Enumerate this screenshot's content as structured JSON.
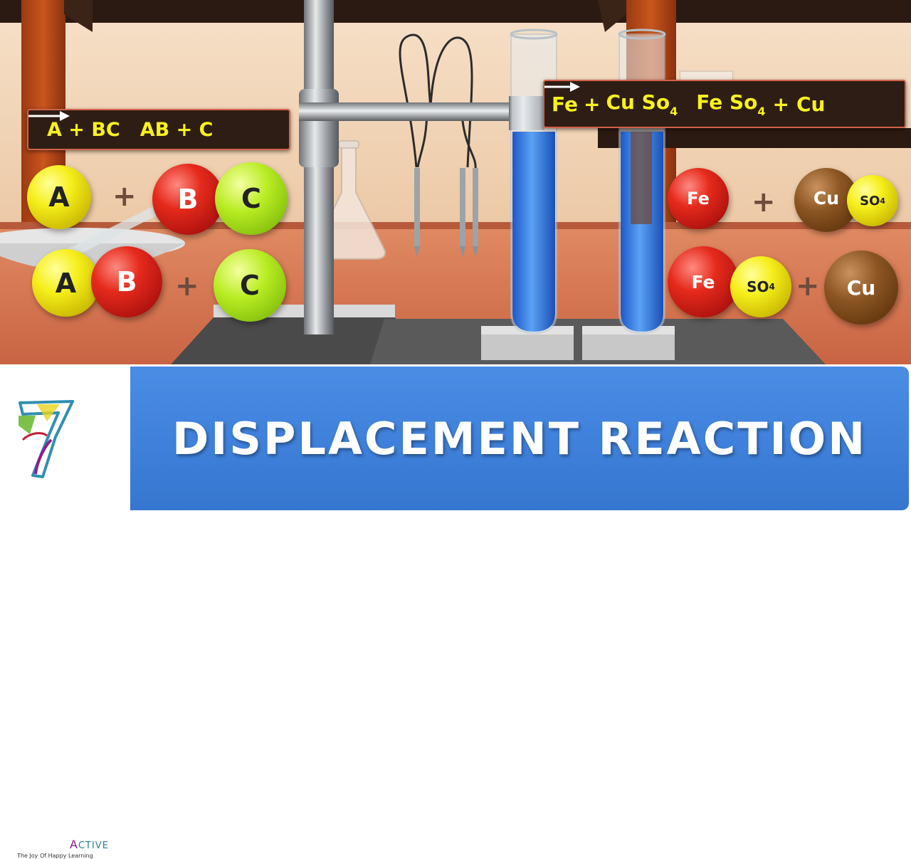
{
  "left_equation": {
    "lhs": "A + BC",
    "rhs": "AB + C"
  },
  "right_equation": {
    "reactant_1": "Fe",
    "reactant_2_main": "Cu So",
    "reactant_2_sub": "4",
    "product_1_main": "Fe So",
    "product_1_sub": "4",
    "product_2": "Cu",
    "plus": "+"
  },
  "molecules_left": {
    "row1": {
      "a": "A",
      "plus": "+",
      "b": "B",
      "c": "C"
    },
    "row2": {
      "a": "A",
      "b": "B",
      "plus": "+",
      "c": "C"
    }
  },
  "molecules_right": {
    "row1": {
      "fe": "Fe",
      "plus": "+",
      "cu": "Cu",
      "so4_main": "SO",
      "so4_sub": "4"
    },
    "row2": {
      "fe": "Fe",
      "so4_main": "SO",
      "so4_sub": "4",
      "plus": "+",
      "cu": "Cu"
    }
  },
  "banner": {
    "title": "DISPLACEMENT REACTION"
  },
  "logo": {
    "brand_cap": "A",
    "brand_rest": "CTIVE",
    "tagline": "The Joy Of Happy Learning"
  },
  "colors": {
    "equation_text": "#f7f21e",
    "equation_bg": "#2e1d14",
    "equation_border": "#d2624a",
    "banner_blue": "#3d7fd9",
    "solution_blue": "#2f6fe0"
  }
}
